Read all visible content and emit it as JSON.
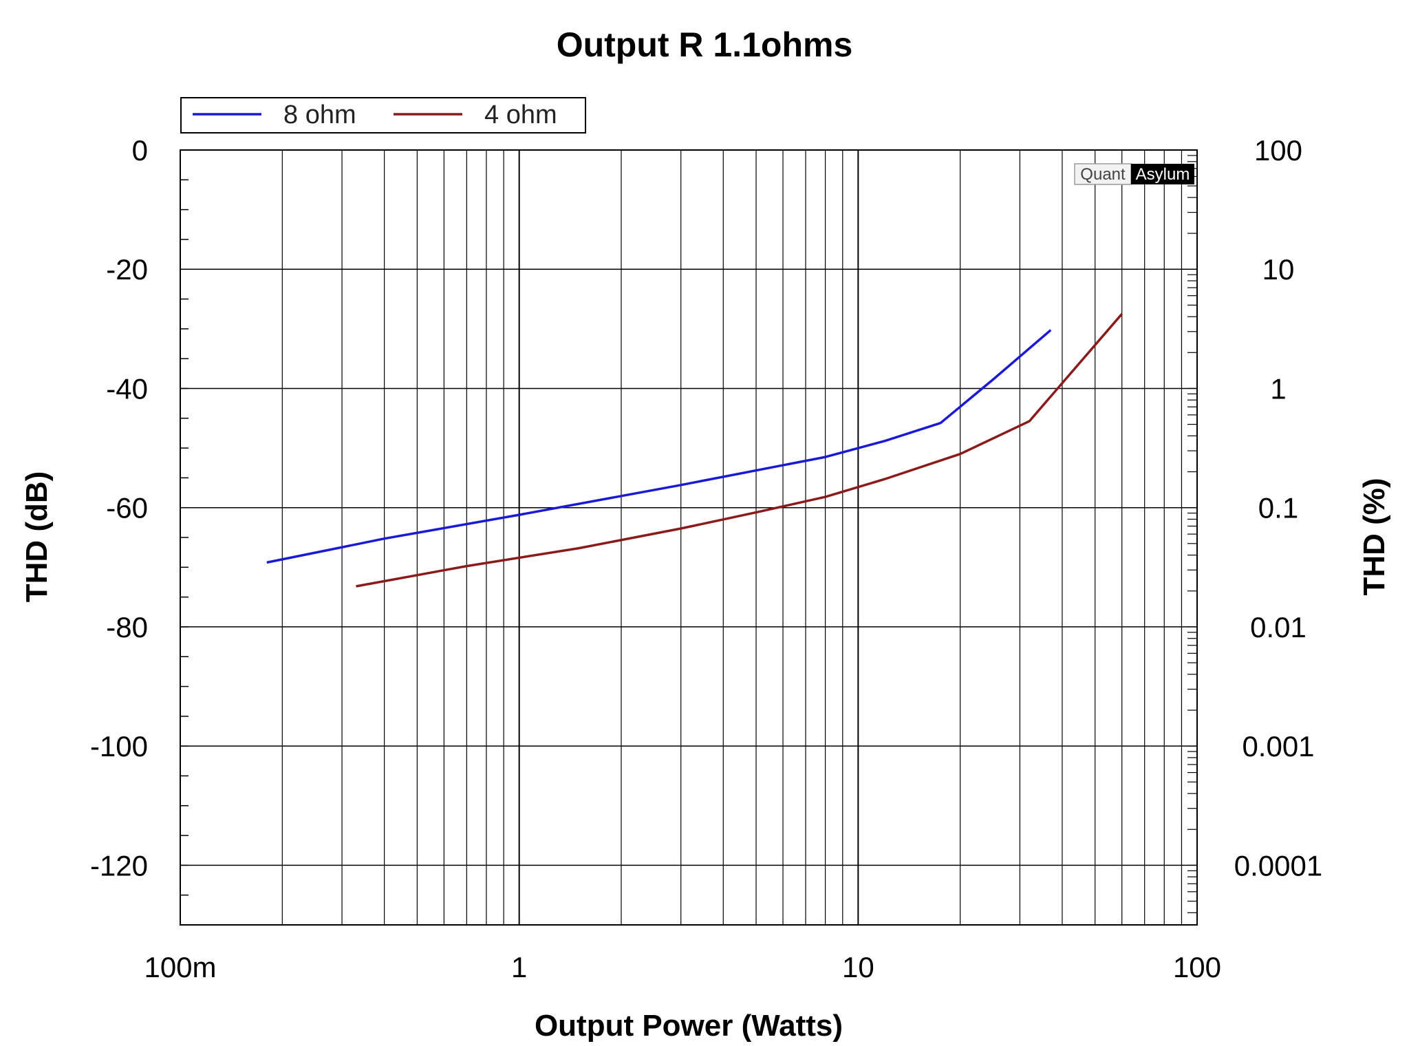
{
  "chart_data": {
    "type": "line",
    "title": "Output R 1.1ohms",
    "xlabel": "Output Power (Watts)",
    "ylabel": "THD (dB)",
    "y2label": "THD (%)",
    "x_scale": "log",
    "xlim": [
      0.1,
      100
    ],
    "ylim": [
      -130,
      0
    ],
    "y2_scale": "log",
    "y2lim": [
      3.162e-05,
      100
    ],
    "grid": true,
    "legend_position": "top-left",
    "x_ticks": [
      {
        "value": 0.1,
        "label": "100m"
      },
      {
        "value": 1,
        "label": "1"
      },
      {
        "value": 10,
        "label": "10"
      },
      {
        "value": 100,
        "label": "100"
      }
    ],
    "y_ticks": [
      {
        "value": 0,
        "label": "0"
      },
      {
        "value": -20,
        "label": "-20"
      },
      {
        "value": -40,
        "label": "-40"
      },
      {
        "value": -60,
        "label": "-60"
      },
      {
        "value": -80,
        "label": "-80"
      },
      {
        "value": -100,
        "label": "-100"
      },
      {
        "value": -120,
        "label": "-120"
      }
    ],
    "y2_ticks": [
      {
        "value": 100,
        "label": "100"
      },
      {
        "value": 10,
        "label": "10"
      },
      {
        "value": 1,
        "label": "1"
      },
      {
        "value": 0.1,
        "label": "0.1"
      },
      {
        "value": 0.01,
        "label": "0.01"
      },
      {
        "value": 0.001,
        "label": "0.001"
      },
      {
        "value": 0.0001,
        "label": "0.0001"
      }
    ],
    "series": [
      {
        "name": "8 ohm",
        "color": "#1a1ad6",
        "x": [
          0.18,
          0.4,
          1,
          3,
          8,
          12,
          17.5,
          25,
          37
        ],
        "y": [
          -69.2,
          -65.2,
          -61.2,
          -56.2,
          -51.5,
          -48.8,
          -45.8,
          -38.5,
          -30.2
        ]
      },
      {
        "name": "4 ohm",
        "color": "#8b1a1a",
        "x": [
          0.33,
          0.7,
          1.5,
          3,
          5,
          8,
          12,
          20,
          32,
          60
        ],
        "y": [
          -73.2,
          -69.8,
          -66.8,
          -63.5,
          -60.8,
          -58.2,
          -55.2,
          -51,
          -45.5,
          -27.5
        ]
      }
    ]
  },
  "watermark": {
    "left": "Quant",
    "right": "Asylum"
  },
  "colors": {
    "grid": "#000000",
    "background": "#ffffff"
  }
}
